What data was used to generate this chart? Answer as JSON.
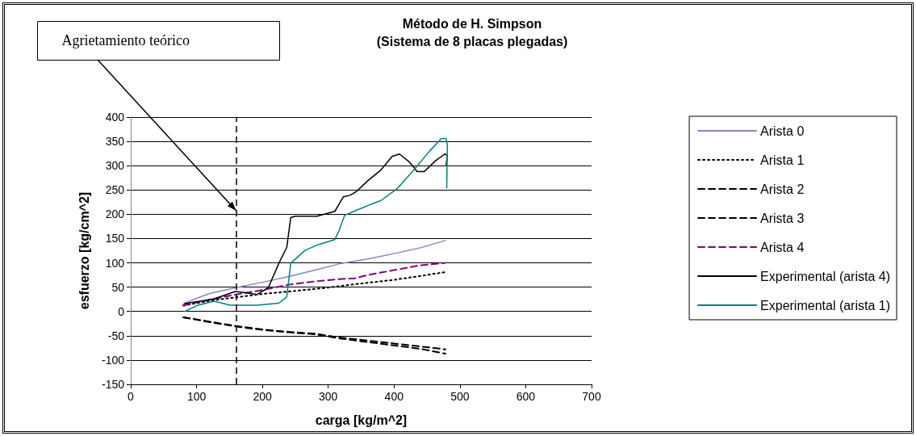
{
  "chart_data": {
    "type": "line",
    "title": "Método de H. Simpson",
    "subtitle": "(Sistema de 8 placas plegadas)",
    "xlabel": "carga [kg/m^2]",
    "ylabel": "esfuerzo [kg/cm^2]",
    "xlim": [
      0,
      700
    ],
    "xticks": [
      0,
      100,
      200,
      300,
      400,
      500,
      600,
      700
    ],
    "ylim": [
      -150,
      400
    ],
    "yticks": [
      -150,
      -100,
      -50,
      0,
      50,
      100,
      150,
      200,
      250,
      300,
      350,
      400
    ],
    "grid": "y",
    "legend": "right",
    "marker": "none",
    "annotations": [
      "Agrietamiento teórico"
    ],
    "ref_lines": [
      {
        "axis": "x",
        "value": 160,
        "color": "#000000",
        "line_style": "dashed"
      }
    ],
    "series": [
      {
        "name": "Arista 0",
        "color": "#8884c8",
        "line_style": "solid",
        "x": [
          80,
          100,
          120,
          160,
          200,
          240,
          280,
          320,
          360,
          400,
          440,
          478
        ],
        "values": [
          16,
          27,
          37,
          49,
          60,
          72,
          85,
          99,
          108,
          119,
          131,
          146
        ]
      },
      {
        "name": "Arista 1",
        "color": "#000000",
        "line_style": "dotted",
        "x": [
          80,
          120,
          160,
          200,
          240,
          300,
          340,
          400,
          440,
          478
        ],
        "values": [
          12,
          22,
          29,
          36,
          41,
          49,
          56,
          65,
          73,
          81
        ]
      },
      {
        "name": "Arista 2",
        "color": "#000000",
        "line_style": "dashed",
        "x": [
          80,
          120,
          160,
          200,
          240,
          280,
          320,
          360,
          400,
          440,
          478
        ],
        "values": [
          -12,
          -21,
          -30,
          -37,
          -42,
          -46,
          -54,
          -60,
          -66,
          -72,
          -78
        ]
      },
      {
        "name": "Arista 3",
        "color": "#000000",
        "line_style": "dashed",
        "x": [
          80,
          120,
          160,
          200,
          240,
          280,
          320,
          360,
          400,
          440,
          478
        ],
        "values": [
          -12,
          -22,
          -31,
          -38,
          -43,
          -47,
          -56,
          -63,
          -70,
          -77,
          -87
        ]
      },
      {
        "name": "Arista 4",
        "color": "#800080",
        "line_style": "dashed",
        "x": [
          80,
          120,
          160,
          200,
          240,
          280,
          320,
          340,
          360,
          400,
          440,
          478
        ],
        "values": [
          13,
          24,
          35,
          44,
          55,
          62,
          67,
          68,
          75,
          85,
          95,
          100
        ]
      },
      {
        "name": "Experimental (arista 4)",
        "color": "#000000",
        "line_style": "solid",
        "x": [
          82,
          127,
          159,
          176,
          192,
          209,
          225,
          237,
          243,
          250,
          283,
          310,
          323,
          333,
          343,
          360,
          380,
          397,
          408,
          423,
          435,
          446,
          463,
          477,
          481,
          479
        ],
        "values": [
          16,
          26,
          41,
          38,
          35,
          49,
          99,
          132,
          193,
          196,
          196,
          206,
          236,
          239,
          247,
          269,
          291,
          319,
          324,
          308,
          288,
          288,
          310,
          324,
          321,
          300
        ]
      },
      {
        "name": "Experimental (arista 1)",
        "color": "#008080",
        "line_style": "solid",
        "x": [
          82,
          102,
          127,
          151,
          192,
          225,
          237,
          243,
          247,
          265,
          286,
          310,
          316,
          325,
          339,
          364,
          380,
          405,
          430,
          454,
          472,
          479,
          481,
          480
        ],
        "values": [
          0,
          13,
          21,
          13,
          13,
          17,
          30,
          99,
          104,
          126,
          138,
          148,
          165,
          198,
          206,
          220,
          228,
          253,
          291,
          330,
          356,
          356,
          341,
          254
        ]
      }
    ]
  }
}
